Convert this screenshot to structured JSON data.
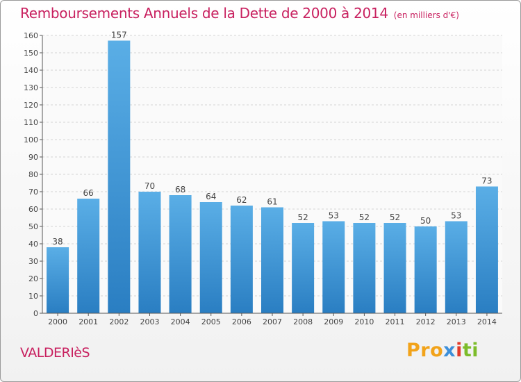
{
  "header": {
    "title": "Remboursements Annuels de la Dette de 2000 à 2014",
    "subtitle": "(en milliers d'€)"
  },
  "footer": {
    "commune": "VALDERIèS",
    "logo_parts": [
      "Pro",
      "x",
      "i",
      "ti"
    ]
  },
  "colors": {
    "accent": "#c8205f",
    "bar_top": "#5aaee6",
    "bar_bottom": "#2a7ec2"
  },
  "chart_data": {
    "type": "bar",
    "title": "Remboursements Annuels de la Dette de 2000 à 2014",
    "categories": [
      "2000",
      "2001",
      "2002",
      "2003",
      "2004",
      "2005",
      "2006",
      "2007",
      "2008",
      "2009",
      "2010",
      "2011",
      "2012",
      "2013",
      "2014"
    ],
    "values": [
      38,
      66,
      157,
      70,
      68,
      64,
      62,
      61,
      52,
      53,
      52,
      52,
      50,
      53,
      73
    ],
    "ylim": [
      0,
      160
    ],
    "yticks": [
      0,
      10,
      20,
      30,
      40,
      50,
      60,
      70,
      80,
      90,
      100,
      110,
      120,
      130,
      140,
      150,
      160
    ],
    "grid": true,
    "legend": "none"
  }
}
